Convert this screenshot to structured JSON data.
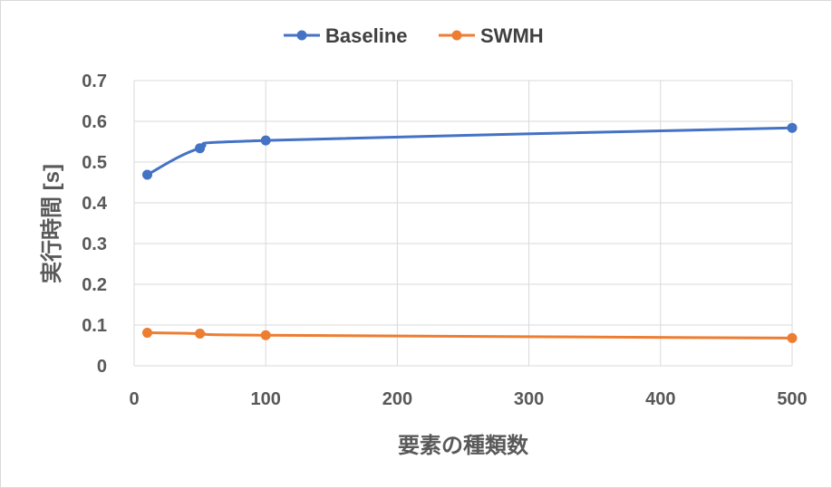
{
  "chart_data": {
    "type": "line",
    "title": "",
    "xlabel": "要素の種類数",
    "ylabel": "実行時間 [s]",
    "xlim": [
      0,
      500
    ],
    "ylim": [
      0,
      0.7
    ],
    "xticks": [
      0,
      100,
      200,
      300,
      400,
      500
    ],
    "yticks": [
      0,
      0.1,
      0.2,
      0.3,
      0.4,
      0.5,
      0.6,
      0.7
    ],
    "grid": true,
    "smooth": true,
    "legend_position": "top",
    "series": [
      {
        "name": "Baseline",
        "color": "#4472c4",
        "points": [
          [
            10,
            0.469
          ],
          [
            50,
            0.534
          ],
          [
            100,
            0.553
          ],
          [
            500,
            0.584
          ]
        ]
      },
      {
        "name": "SWMH",
        "color": "#ed7d31",
        "points": [
          [
            10,
            0.081
          ],
          [
            50,
            0.079
          ],
          [
            100,
            0.075
          ],
          [
            500,
            0.068
          ]
        ]
      }
    ]
  }
}
